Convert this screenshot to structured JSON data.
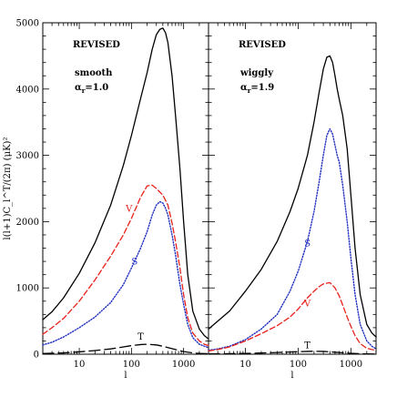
{
  "chart_data": {
    "type": "line",
    "ylabel": "l(l+1)C_l^T/(2π) (μK)²",
    "xlabel": "l",
    "xscale": "log",
    "xlim": [
      2,
      3000
    ],
    "ylim": [
      0,
      5000
    ],
    "yticks": [
      "0",
      "1000",
      "2000",
      "3000",
      "4000",
      "5000"
    ],
    "xticks": [
      "10",
      "100",
      "1000"
    ],
    "grid": false,
    "panels": [
      {
        "title": "REVISED",
        "subtitle": "smooth",
        "param": "α",
        "param_sub": "r",
        "param_value": "=1.0",
        "series": [
          {
            "key": "total",
            "color": "#000000",
            "style": "solid",
            "x": [
              2,
              3,
              5,
              10,
              20,
              40,
              70,
              100,
              150,
              200,
              250,
              300,
              350,
              400,
              450,
              500,
              600,
              700,
              850,
              1000,
              1200,
              1500,
              2000,
              2500,
              3000
            ],
            "y": [
              520,
              640,
              850,
              1220,
              1680,
              2250,
              2850,
              3300,
              3860,
              4250,
              4600,
              4820,
              4900,
              4920,
              4850,
              4700,
              4200,
              3600,
              2800,
              2000,
              1200,
              650,
              380,
              280,
              230
            ]
          },
          {
            "label": "V",
            "label_x": 90,
            "label_y": 2150,
            "color": "#e8201a",
            "style": "dashed",
            "x": [
              2,
              3,
              5,
              10,
              20,
              40,
              70,
              100,
              150,
              200,
              250,
              300,
              400,
              500,
              600,
              700,
              850,
              1000,
              1200,
              1500,
              2000,
              2500,
              3000
            ],
            "y": [
              300,
              400,
              540,
              800,
              1120,
              1480,
              1800,
              2050,
              2370,
              2540,
              2550,
              2500,
              2400,
              2250,
              1980,
              1700,
              1300,
              900,
              550,
              320,
              200,
              150,
              130
            ]
          },
          {
            "label": "S",
            "label_x": 115,
            "label_y": 1350,
            "color": "#2030c0",
            "style": "dotted",
            "x": [
              2,
              3,
              5,
              10,
              20,
              40,
              70,
              100,
              150,
              200,
              250,
              300,
              350,
              400,
              450,
              500,
              600,
              700,
              850,
              1000,
              1200,
              1500,
              2000,
              2500,
              3000
            ],
            "y": [
              140,
              180,
              260,
              400,
              560,
              780,
              1050,
              1300,
              1600,
              1850,
              2100,
              2250,
              2300,
              2280,
              2200,
              2100,
              1800,
              1500,
              1050,
              750,
              450,
              250,
              150,
              120,
              100
            ]
          },
          {
            "label": "T",
            "label_x": 150,
            "label_y": 220,
            "color": "#000000",
            "style": "longdash",
            "x": [
              2,
              5,
              10,
              20,
              40,
              70,
              100,
              150,
              200,
              300,
              400,
              500,
              700,
              1000,
              1500,
              2000,
              3000
            ],
            "y": [
              10,
              20,
              35,
              55,
              80,
              110,
              130,
              145,
              150,
              140,
              120,
              100,
              70,
              40,
              20,
              12,
              8
            ]
          }
        ]
      },
      {
        "title": "REVISED",
        "subtitle": "wiggly",
        "param": "α",
        "param_sub": "r",
        "param_value": "=1.9",
        "series": [
          {
            "key": "total",
            "color": "#000000",
            "style": "solid",
            "x": [
              2,
              3,
              5,
              10,
              20,
              40,
              70,
              100,
              150,
              200,
              250,
              300,
              350,
              400,
              450,
              500,
              550,
              600,
              700,
              850,
              1000,
              1200,
              1500,
              2000,
              2500,
              3000
            ],
            "y": [
              380,
              500,
              650,
              950,
              1280,
              1700,
              2150,
              2500,
              3000,
              3500,
              3950,
              4300,
              4480,
              4500,
              4400,
              4200,
              4000,
              3850,
              3600,
              3100,
              2400,
              1600,
              900,
              450,
              320,
              260
            ]
          },
          {
            "label": "S",
            "label_x": 150,
            "label_y": 1630,
            "color": "#2030c0",
            "style": "dotted",
            "x": [
              2,
              3,
              5,
              10,
              20,
              40,
              70,
              100,
              150,
              200,
              250,
              300,
              350,
              400,
              450,
              500,
              550,
              600,
              700,
              850,
              1000,
              1200,
              1500,
              2000,
              2500,
              3000
            ],
            "y": [
              60,
              80,
              120,
              220,
              380,
              600,
              950,
              1250,
              1700,
              2150,
              2600,
              3000,
              3300,
              3400,
              3320,
              3150,
              3000,
              2900,
              2550,
              2000,
              1450,
              900,
              450,
              200,
              120,
              80
            ]
          },
          {
            "label": "V",
            "label_x": 150,
            "label_y": 720,
            "color": "#e8201a",
            "style": "dashed",
            "x": [
              2,
              3,
              5,
              10,
              20,
              40,
              70,
              100,
              150,
              200,
              250,
              300,
              400,
              500,
              600,
              700,
              850,
              1000,
              1200,
              1500,
              2000,
              2500,
              3000
            ],
            "y": [
              50,
              70,
              110,
              200,
              310,
              430,
              560,
              680,
              850,
              950,
              1020,
              1060,
              1080,
              1000,
              880,
              740,
              560,
              420,
              280,
              160,
              90,
              70,
              60
            ]
          },
          {
            "label": "T",
            "label_x": 150,
            "label_y": 90,
            "color": "#000000",
            "style": "longdash",
            "x": [
              2,
              5,
              10,
              20,
              40,
              70,
              100,
              150,
              200,
              300,
              400,
              500,
              700,
              1000,
              1500,
              2000,
              3000
            ],
            "y": [
              5,
              8,
              12,
              18,
              26,
              33,
              38,
              42,
              44,
              42,
              36,
              30,
              22,
              14,
              8,
              5,
              3
            ]
          }
        ]
      }
    ]
  }
}
